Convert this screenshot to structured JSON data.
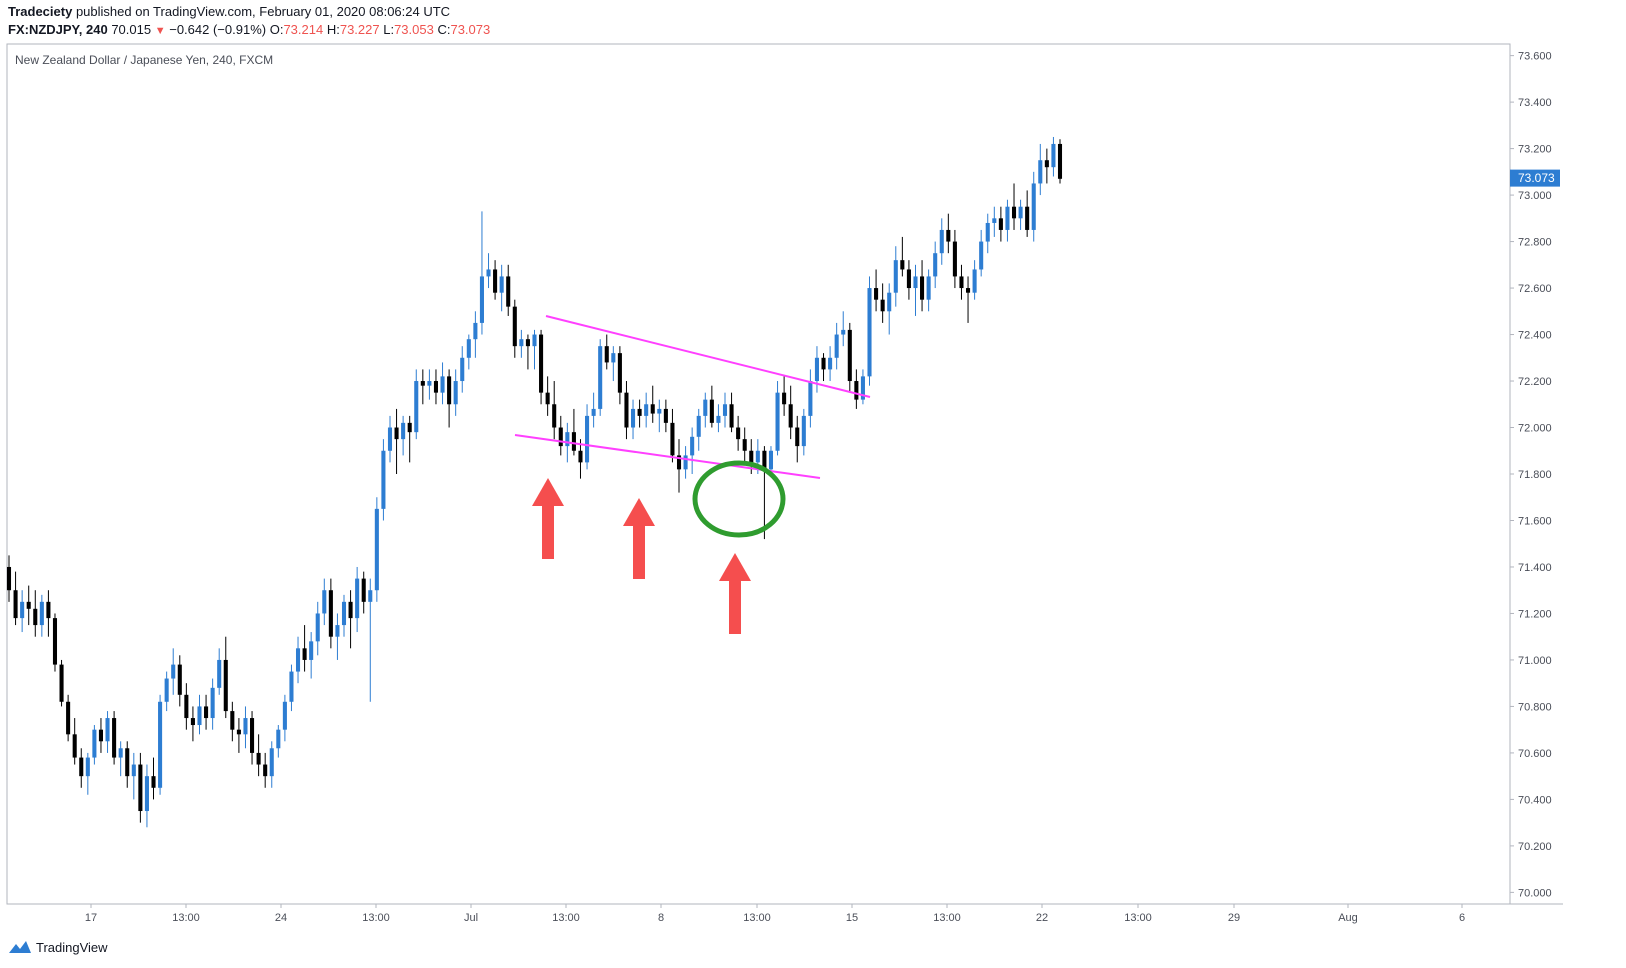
{
  "header": {
    "publisher": "Tradeciety",
    "published_text": "published on TradingView.com, February 01, 2020 08:06:24 UTC",
    "symbol": "FX:NZDJPY, 240",
    "last": "70.015",
    "change": "−0.642 (−0.91%)",
    "open_label": "O:",
    "open": "73.214",
    "high_label": "H:",
    "high": "73.227",
    "low_label": "L:",
    "low": "73.053",
    "close_label": "C:",
    "close": "73.073"
  },
  "footer": {
    "brand": "TradingView"
  },
  "colors": {
    "up": "#2d7dd2",
    "down": "#000000",
    "trendline": "#ff40ff",
    "arrow": "#f54e4e",
    "circle": "#2f9c2f",
    "price_tag": "#2d7dd2"
  },
  "chart_data": {
    "type": "candlestick",
    "title": "New Zealand Dollar / Japanese Yen, 240, FXCM",
    "ylim": [
      69.95,
      73.65
    ],
    "y_ticks": [
      "73.600",
      "73.400",
      "73.200",
      "73.000",
      "72.800",
      "72.600",
      "72.400",
      "72.200",
      "72.000",
      "71.800",
      "71.600",
      "71.400",
      "71.200",
      "71.000",
      "70.800",
      "70.600",
      "70.400",
      "70.200",
      "70.000"
    ],
    "x_ticks": [
      "17",
      "13:00",
      "24",
      "13:00",
      "Jul",
      "13:00",
      "8",
      "13:00",
      "15",
      "13:00",
      "22",
      "13:00",
      "29",
      "Aug",
      "6"
    ],
    "last_price_label": "73.073",
    "ohlc": [
      [
        71.4,
        71.45,
        71.25,
        71.3
      ],
      [
        71.3,
        71.38,
        71.15,
        71.18
      ],
      [
        71.18,
        71.3,
        71.12,
        71.25
      ],
      [
        71.25,
        71.32,
        71.15,
        71.22
      ],
      [
        71.22,
        71.3,
        71.1,
        71.15
      ],
      [
        71.15,
        71.28,
        71.1,
        71.25
      ],
      [
        71.25,
        71.3,
        71.1,
        71.18
      ],
      [
        71.18,
        71.2,
        70.95,
        70.98
      ],
      [
        70.98,
        71.0,
        70.8,
        70.82
      ],
      [
        70.82,
        70.85,
        70.65,
        70.68
      ],
      [
        70.68,
        70.75,
        70.55,
        70.58
      ],
      [
        70.58,
        70.62,
        70.45,
        70.5
      ],
      [
        70.5,
        70.6,
        70.42,
        70.58
      ],
      [
        70.58,
        70.72,
        70.55,
        70.7
      ],
      [
        70.7,
        70.75,
        70.6,
        70.65
      ],
      [
        70.65,
        70.78,
        70.6,
        70.75
      ],
      [
        70.75,
        70.78,
        70.55,
        70.58
      ],
      [
        70.58,
        70.65,
        70.5,
        70.62
      ],
      [
        70.62,
        70.65,
        70.45,
        70.5
      ],
      [
        70.5,
        70.6,
        70.4,
        70.55
      ],
      [
        70.55,
        70.6,
        70.3,
        70.35
      ],
      [
        70.35,
        70.55,
        70.28,
        70.5
      ],
      [
        70.5,
        70.58,
        70.4,
        70.45
      ],
      [
        70.45,
        70.85,
        70.42,
        70.82
      ],
      [
        70.82,
        70.95,
        70.78,
        70.92
      ],
      [
        70.92,
        71.05,
        70.85,
        70.98
      ],
      [
        70.98,
        71.02,
        70.8,
        70.85
      ],
      [
        70.85,
        70.9,
        70.7,
        70.75
      ],
      [
        70.75,
        70.8,
        70.65,
        70.72
      ],
      [
        70.72,
        70.85,
        70.68,
        70.8
      ],
      [
        70.8,
        70.85,
        70.7,
        70.75
      ],
      [
        70.75,
        70.92,
        70.7,
        70.88
      ],
      [
        70.88,
        71.05,
        70.85,
        71.0
      ],
      [
        71.0,
        71.1,
        70.75,
        70.78
      ],
      [
        70.78,
        70.82,
        70.65,
        70.7
      ],
      [
        70.7,
        70.75,
        70.6,
        70.68
      ],
      [
        70.68,
        70.8,
        70.62,
        70.75
      ],
      [
        70.75,
        70.78,
        70.55,
        70.6
      ],
      [
        70.6,
        70.68,
        70.5,
        70.55
      ],
      [
        70.55,
        70.6,
        70.45,
        70.5
      ],
      [
        70.5,
        70.65,
        70.45,
        70.62
      ],
      [
        70.62,
        70.72,
        70.58,
        70.7
      ],
      [
        70.7,
        70.85,
        70.65,
        70.82
      ],
      [
        70.82,
        70.98,
        70.78,
        70.95
      ],
      [
        70.95,
        71.1,
        70.9,
        71.05
      ],
      [
        71.05,
        71.15,
        70.95,
        71.0
      ],
      [
        71.0,
        71.12,
        70.92,
        71.08
      ],
      [
        71.08,
        71.25,
        71.02,
        71.2
      ],
      [
        71.2,
        71.35,
        71.15,
        71.3
      ],
      [
        71.3,
        71.35,
        71.05,
        71.1
      ],
      [
        71.1,
        71.2,
        71.0,
        71.15
      ],
      [
        71.15,
        71.28,
        71.1,
        71.25
      ],
      [
        71.25,
        71.3,
        71.05,
        71.18
      ],
      [
        71.18,
        71.4,
        71.12,
        71.35
      ],
      [
        71.35,
        71.38,
        71.2,
        71.25
      ],
      [
        71.25,
        71.35,
        70.82,
        71.3
      ],
      [
        71.3,
        71.7,
        71.25,
        71.65
      ],
      [
        71.65,
        71.95,
        71.6,
        71.9
      ],
      [
        71.9,
        72.05,
        71.85,
        72.0
      ],
      [
        72.0,
        72.08,
        71.8,
        71.95
      ],
      [
        71.95,
        72.05,
        71.88,
        72.02
      ],
      [
        72.02,
        72.05,
        71.85,
        71.98
      ],
      [
        71.98,
        72.25,
        71.95,
        72.2
      ],
      [
        72.2,
        72.25,
        72.1,
        72.18
      ],
      [
        72.18,
        72.25,
        72.12,
        72.2
      ],
      [
        72.2,
        72.25,
        72.1,
        72.15
      ],
      [
        72.15,
        72.28,
        72.1,
        72.22
      ],
      [
        72.22,
        72.25,
        72.0,
        72.1
      ],
      [
        72.1,
        72.25,
        72.05,
        72.2
      ],
      [
        72.2,
        72.35,
        72.15,
        72.3
      ],
      [
        72.3,
        72.4,
        72.25,
        72.38
      ],
      [
        72.38,
        72.5,
        72.3,
        72.45
      ],
      [
        72.45,
        72.93,
        72.4,
        72.65
      ],
      [
        72.65,
        72.75,
        72.6,
        72.68
      ],
      [
        72.68,
        72.72,
        72.55,
        72.58
      ],
      [
        72.58,
        72.7,
        72.5,
        72.65
      ],
      [
        72.65,
        72.7,
        72.48,
        72.52
      ],
      [
        72.52,
        72.55,
        72.3,
        72.35
      ],
      [
        72.35,
        72.42,
        72.3,
        72.38
      ],
      [
        72.38,
        72.4,
        72.25,
        72.35
      ],
      [
        72.35,
        72.42,
        72.25,
        72.4
      ],
      [
        72.4,
        72.42,
        72.1,
        72.15
      ],
      [
        72.15,
        72.22,
        72.05,
        72.1
      ],
      [
        72.1,
        72.2,
        71.95,
        72.0
      ],
      [
        72.0,
        72.05,
        71.88,
        71.92
      ],
      [
        71.92,
        72.02,
        71.85,
        71.98
      ],
      [
        71.98,
        72.08,
        71.88,
        71.9
      ],
      [
        71.9,
        71.95,
        71.78,
        71.85
      ],
      [
        71.85,
        72.1,
        71.82,
        72.05
      ],
      [
        72.05,
        72.15,
        72.0,
        72.08
      ],
      [
        72.08,
        72.38,
        72.05,
        72.35
      ],
      [
        72.35,
        72.4,
        72.25,
        72.28
      ],
      [
        72.28,
        72.35,
        72.2,
        72.32
      ],
      [
        72.32,
        72.35,
        72.1,
        72.15
      ],
      [
        72.15,
        72.2,
        71.95,
        72.0
      ],
      [
        72.0,
        72.12,
        71.95,
        72.08
      ],
      [
        72.08,
        72.12,
        72.0,
        72.05
      ],
      [
        72.05,
        72.15,
        72.0,
        72.1
      ],
      [
        72.1,
        72.18,
        72.02,
        72.06
      ],
      [
        72.06,
        72.12,
        71.98,
        72.08
      ],
      [
        72.08,
        72.12,
        71.98,
        72.02
      ],
      [
        72.02,
        72.08,
        71.85,
        71.88
      ],
      [
        71.88,
        71.95,
        71.72,
        71.82
      ],
      [
        71.82,
        71.92,
        71.78,
        71.88
      ],
      [
        71.88,
        72.0,
        71.8,
        71.96
      ],
      [
        71.96,
        72.08,
        71.9,
        72.05
      ],
      [
        72.05,
        72.15,
        72.0,
        72.12
      ],
      [
        72.12,
        72.18,
        72.0,
        72.02
      ],
      [
        72.02,
        72.1,
        71.98,
        72.05
      ],
      [
        72.05,
        72.15,
        72.0,
        72.1
      ],
      [
        72.1,
        72.15,
        71.98,
        72.0
      ],
      [
        72.0,
        72.05,
        71.9,
        71.95
      ],
      [
        71.95,
        72.0,
        71.85,
        71.9
      ],
      [
        71.9,
        71.95,
        71.8,
        71.85
      ],
      [
        71.85,
        71.95,
        71.8,
        71.9
      ],
      [
        71.9,
        71.92,
        71.52,
        71.82
      ],
      [
        71.82,
        71.92,
        71.8,
        71.9
      ],
      [
        71.9,
        72.2,
        71.88,
        72.15
      ],
      [
        72.15,
        72.22,
        72.05,
        72.1
      ],
      [
        72.1,
        72.18,
        71.95,
        72.0
      ],
      [
        72.0,
        72.05,
        71.85,
        71.92
      ],
      [
        71.92,
        72.08,
        71.88,
        72.05
      ],
      [
        72.05,
        72.25,
        72.0,
        72.2
      ],
      [
        72.2,
        72.35,
        72.15,
        72.3
      ],
      [
        72.3,
        72.32,
        72.2,
        72.25
      ],
      [
        72.25,
        72.35,
        72.2,
        72.3
      ],
      [
        72.3,
        72.45,
        72.25,
        72.4
      ],
      [
        72.4,
        72.5,
        72.35,
        72.42
      ],
      [
        72.42,
        72.45,
        72.15,
        72.2
      ],
      [
        72.2,
        72.25,
        72.08,
        72.12
      ],
      [
        72.12,
        72.25,
        72.1,
        72.22
      ],
      [
        72.22,
        72.65,
        72.18,
        72.6
      ],
      [
        72.6,
        72.68,
        72.5,
        72.55
      ],
      [
        72.55,
        72.62,
        72.45,
        72.5
      ],
      [
        72.5,
        72.62,
        72.4,
        72.58
      ],
      [
        72.58,
        72.78,
        72.52,
        72.72
      ],
      [
        72.72,
        72.82,
        72.65,
        72.68
      ],
      [
        72.68,
        72.72,
        72.55,
        72.6
      ],
      [
        72.6,
        72.7,
        72.48,
        72.65
      ],
      [
        72.65,
        72.72,
        72.5,
        72.55
      ],
      [
        72.55,
        72.68,
        72.5,
        72.65
      ],
      [
        72.65,
        72.8,
        72.6,
        72.75
      ],
      [
        72.75,
        72.9,
        72.7,
        72.85
      ],
      [
        72.85,
        72.92,
        72.75,
        72.8
      ],
      [
        72.8,
        72.85,
        72.6,
        72.65
      ],
      [
        72.65,
        72.7,
        72.55,
        72.6
      ],
      [
        72.6,
        72.65,
        72.45,
        72.58
      ],
      [
        72.58,
        72.72,
        72.55,
        72.68
      ],
      [
        72.68,
        72.85,
        72.65,
        72.8
      ],
      [
        72.8,
        72.92,
        72.75,
        72.88
      ],
      [
        72.88,
        72.95,
        72.82,
        72.9
      ],
      [
        72.9,
        72.95,
        72.8,
        72.85
      ],
      [
        72.85,
        72.98,
        72.8,
        72.95
      ],
      [
        72.95,
        73.05,
        72.85,
        72.9
      ],
      [
        72.9,
        72.98,
        72.85,
        72.95
      ],
      [
        72.95,
        73.02,
        72.82,
        72.85
      ],
      [
        72.85,
        73.1,
        72.8,
        73.05
      ],
      [
        73.05,
        73.22,
        73.0,
        73.15
      ],
      [
        73.15,
        73.2,
        73.05,
        73.12
      ],
      [
        73.12,
        73.25,
        73.08,
        73.22
      ],
      [
        73.22,
        73.24,
        73.05,
        73.07
      ]
    ]
  }
}
